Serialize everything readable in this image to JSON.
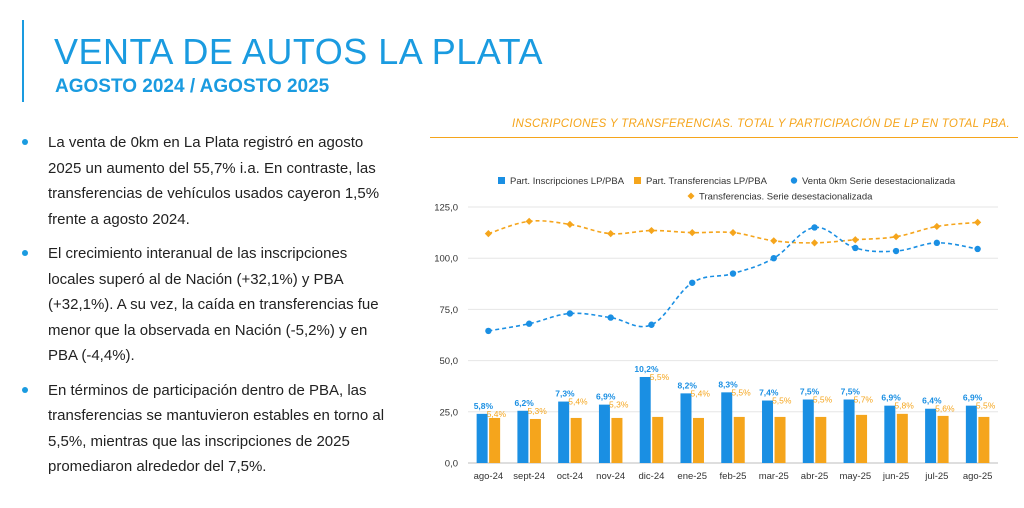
{
  "header": {
    "title": "VENTA DE AUTOS LA PLATA",
    "subtitle": "AGOSTO 2024 / AGOSTO 2025"
  },
  "bullets": [
    "La venta de 0km en La Plata registró en agosto 2025 un aumento del 55,7% i.a. En contraste, las transferencias de vehículos usados cayeron 1,5% frente a agosto 2024.",
    "El crecimiento interanual de las inscripciones locales superó al de Nación (+32,1%) y PBA (+32,1%). A su vez, la caída en transferencias fue menor que la observada en Nación (-5,2%) y en PBA (-4,4%).",
    "En términos de participación dentro de PBA, las transferencias se mantuvieron estables en torno al 5,5%, mientras que las inscripciones de 2025 promediaron alrededor del 7,5%."
  ],
  "chart_title": "INSCRIPCIONES Y TRANSFERENCIAS. TOTAL Y PARTICIPACIÓN DE LP EN TOTAL PBA.",
  "chart_data": {
    "type": "bar+line",
    "categories": [
      "ago-24",
      "sept-24",
      "oct-24",
      "nov-24",
      "dic-24",
      "ene-25",
      "feb-25",
      "mar-25",
      "abr-25",
      "may-25",
      "jun-25",
      "jul-25",
      "ago-25"
    ],
    "ylim": [
      0,
      125
    ],
    "yticks": [
      "0,0",
      "25,0",
      "50,0",
      "75,0",
      "100,0",
      "125,0"
    ],
    "colors": {
      "blue": "#1a8fe3",
      "orange": "#f5a51c"
    },
    "legend": {
      "bars_blue": "Part. Inscripciones LP/PBA",
      "bars_orange": "Part. Transferencias LP/PBA",
      "line_blue": "Venta 0km Serie desestacionalizada",
      "line_orange": "Transferencias. Serie desestacionalizada"
    },
    "series": [
      {
        "name": "Part. Inscripciones LP/PBA",
        "kind": "bar",
        "values": [
          24,
          25.5,
          30,
          28.5,
          42,
          34,
          34.5,
          30.5,
          31,
          31,
          28,
          26.5,
          28
        ],
        "labels": [
          "5,8%",
          "6,2%",
          "7,3%",
          "6,9%",
          "10,2%",
          "8,2%",
          "8,3%",
          "7,4%",
          "7,5%",
          "7,5%",
          "6,9%",
          "6,4%",
          "6,9%"
        ]
      },
      {
        "name": "Part. Transferencias LP/PBA",
        "kind": "bar",
        "values": [
          22,
          21.5,
          22,
          22,
          22.5,
          22,
          22.5,
          22.5,
          22.5,
          23.5,
          24,
          23,
          22.5
        ],
        "labels": [
          "5,4%",
          "5,3%",
          "5,4%",
          "5,3%",
          "5,5%",
          "5,4%",
          "5,5%",
          "5,5%",
          "5,5%",
          "5,7%",
          "5,8%",
          "5,6%",
          "5,5%"
        ]
      },
      {
        "name": "Venta 0km Serie desestacionalizada",
        "kind": "line",
        "values": [
          64.5,
          68,
          73,
          71,
          67.5,
          88,
          92.5,
          100,
          115,
          105,
          103.5,
          107.5,
          104.5
        ]
      },
      {
        "name": "Transferencias. Serie desestacionalizada",
        "kind": "line",
        "values": [
          112,
          118,
          116.5,
          112,
          113.5,
          112.5,
          112.5,
          108.5,
          107.5,
          109,
          110.5,
          115.5,
          117.5
        ]
      }
    ]
  }
}
